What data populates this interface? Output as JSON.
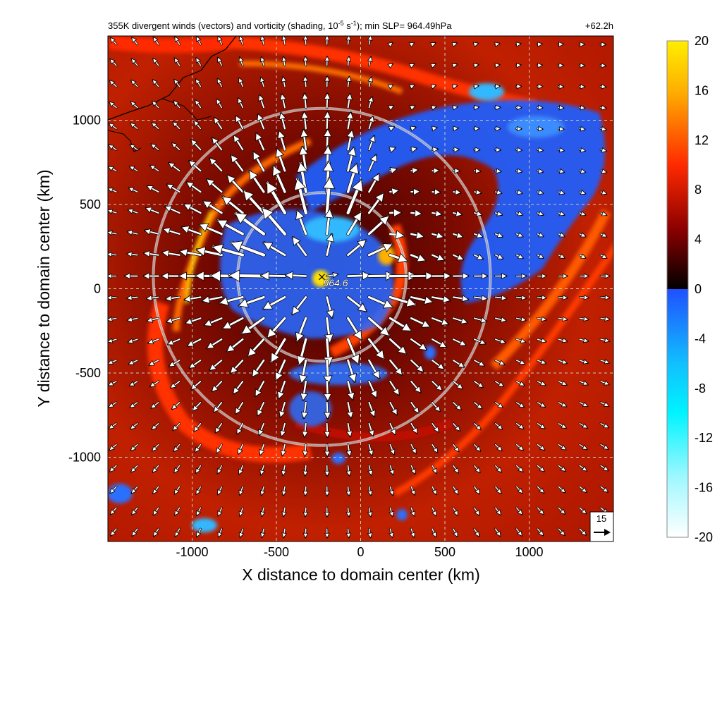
{
  "chart_data": {
    "type": "heatmap",
    "title": "355K divergent winds (vectors) and vorticity (shading, 10",
    "title_exp": "-5",
    "title_mid": " s",
    "title_exp2": "-1",
    "title_tail": "); min SLP= 964.49hPa",
    "forecast_time": "+62.2h",
    "xlabel": "X distance to domain center (km)",
    "ylabel": "Y distance to domain center (km)",
    "xlim": [
      -1500,
      1500
    ],
    "ylim": [
      -1500,
      1500
    ],
    "xticks": [
      -1000,
      -500,
      0,
      500,
      1000
    ],
    "yticks": [
      -1000,
      -500,
      0,
      500,
      1000
    ],
    "grid": true,
    "colorbar": {
      "label_values": [
        20,
        16,
        12,
        8,
        4,
        0,
        -4,
        -8,
        -12,
        -16,
        -20
      ],
      "range": [
        -20,
        20
      ]
    },
    "center_marker": {
      "label": "964.6",
      "x": -230,
      "y": 70
    },
    "range_rings_km": [
      500,
      1000
    ],
    "reference_vector": {
      "label": "15",
      "value": 15
    },
    "colors": {
      "positive_high": "#ffee00",
      "positive_mid": "#ff2000",
      "positive_low": "#000000",
      "negative_low": "#2050ff",
      "negative_mid": "#00f4ff",
      "negative_high": "#ffffff",
      "vector": "#ffffff",
      "grid": "#cccccc"
    }
  }
}
